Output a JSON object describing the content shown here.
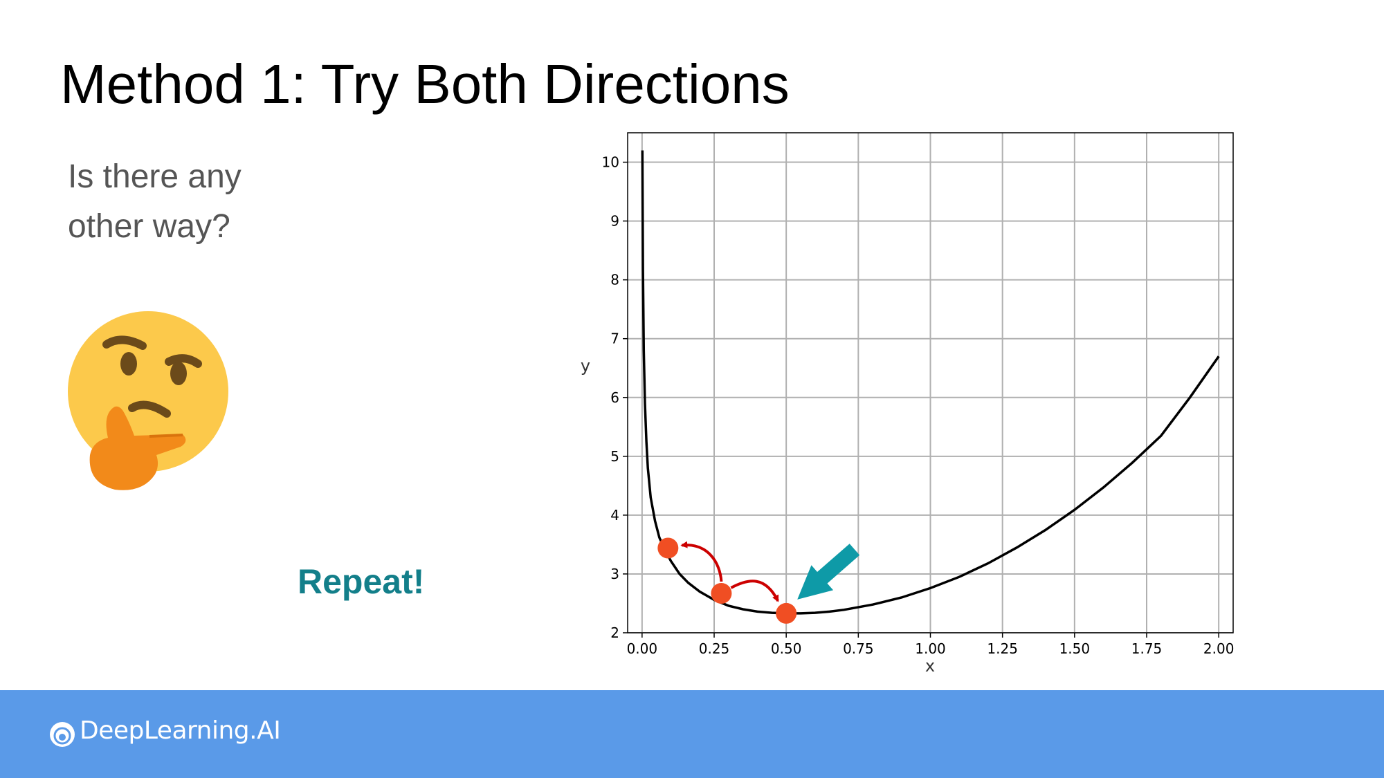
{
  "slide": {
    "title": "Method 1: Try Both Directions",
    "question_lines": [
      "Is there any",
      "other way?"
    ],
    "repeat_label": "Repeat!"
  },
  "footer": {
    "brand": "DeepLearning.AI"
  },
  "icons": [
    "thinking-face-icon",
    "deeplearning-logo-icon",
    "teal-arrow-icon"
  ],
  "colors": {
    "accent_teal": "#137f8a",
    "arrow_teal": "#0e9aa7",
    "point_orange": "#f04e23",
    "step_arrow_red": "#cc0000",
    "footer_blue": "#5a9ae8"
  },
  "chart_data": {
    "type": "line",
    "xlabel": "x",
    "ylabel": "y",
    "xlim": [
      -0.05,
      2.05
    ],
    "ylim": [
      2,
      10.5
    ],
    "xticks": [
      "0.00",
      "0.25",
      "0.50",
      "0.75",
      "1.00",
      "1.25",
      "1.50",
      "1.75",
      "2.00"
    ],
    "yticks": [
      "2",
      "3",
      "4",
      "5",
      "6",
      "7",
      "8",
      "9",
      "10"
    ],
    "grid": true,
    "series": [
      {
        "x": [
          0.001,
          0.003,
          0.006,
          0.01,
          0.015,
          0.02,
          0.03,
          0.045,
          0.06,
          0.08,
          0.1,
          0.13,
          0.16,
          0.2,
          0.25,
          0.3,
          0.35,
          0.4,
          0.45,
          0.5,
          0.55,
          0.6,
          0.65,
          0.7,
          0.8,
          0.9,
          1.0,
          1.1,
          1.2,
          1.3,
          1.4,
          1.5,
          1.6,
          1.7,
          1.8,
          1.9,
          2.0
        ],
        "y": [
          10.2,
          8.2,
          6.8,
          5.9,
          5.25,
          4.8,
          4.3,
          3.9,
          3.62,
          3.4,
          3.22,
          3.0,
          2.85,
          2.7,
          2.56,
          2.46,
          2.4,
          2.36,
          2.34,
          2.33,
          2.33,
          2.34,
          2.36,
          2.39,
          2.48,
          2.6,
          2.76,
          2.95,
          3.18,
          3.45,
          3.75,
          4.09,
          4.47,
          4.89,
          5.35,
          6.0,
          6.7
        ]
      }
    ],
    "points": [
      {
        "x": 0.09,
        "y": 3.44
      },
      {
        "x": 0.275,
        "y": 2.67
      },
      {
        "x": 0.5,
        "y": 2.33
      }
    ]
  }
}
